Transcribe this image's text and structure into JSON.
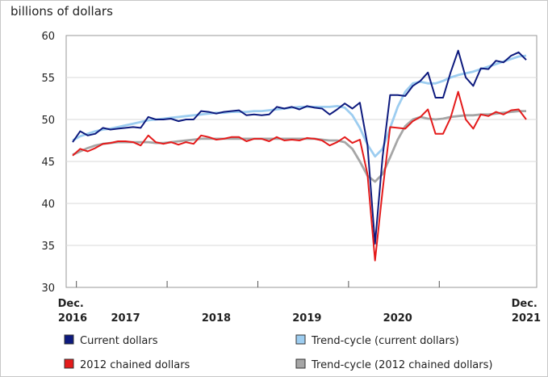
{
  "chart_data": {
    "type": "line",
    "y_label": "billions of dollars",
    "categories": [
      "Dec. 2016",
      null,
      null,
      null,
      null,
      null,
      null,
      "2017",
      null,
      null,
      null,
      null,
      null,
      null,
      null,
      null,
      null,
      null,
      null,
      "2018",
      null,
      null,
      null,
      null,
      null,
      null,
      null,
      null,
      null,
      null,
      null,
      "2019",
      null,
      null,
      null,
      null,
      null,
      null,
      null,
      null,
      null,
      null,
      null,
      "2020",
      null,
      null,
      null,
      null,
      null,
      null,
      null,
      null,
      null,
      null,
      null,
      null,
      null,
      null,
      null,
      null,
      "Dec. 2021"
    ],
    "ylim": [
      30,
      60
    ],
    "yticks": [
      30,
      35,
      40,
      45,
      50,
      55,
      60
    ],
    "grid": true,
    "series": [
      {
        "name": "Current dollars",
        "color": "#0d1a7e",
        "values": [
          47.3,
          48.6,
          48.1,
          48.3,
          49.0,
          48.8,
          48.9,
          49.0,
          49.1,
          49.0,
          50.3,
          50.0,
          50.0,
          50.1,
          49.8,
          50.0,
          50.0,
          51.0,
          50.9,
          50.7,
          50.9,
          51.0,
          51.1,
          50.5,
          50.6,
          50.5,
          50.6,
          51.5,
          51.3,
          51.5,
          51.2,
          51.6,
          51.4,
          51.3,
          50.6,
          51.2,
          51.9,
          51.3,
          52.0,
          47.0,
          35.2,
          45.5,
          52.9,
          52.9,
          52.8,
          54.0,
          54.6,
          55.6,
          52.6,
          52.6,
          55.6,
          58.2,
          55.0,
          54.0,
          56.1,
          56.0,
          57.0,
          56.8,
          57.6,
          58.0,
          57.1
        ]
      },
      {
        "name": "Trend-cycle (current dollars)",
        "color": "#9dcdf0",
        "values": [
          47.5,
          48.0,
          48.3,
          48.6,
          48.8,
          48.9,
          49.1,
          49.3,
          49.5,
          49.7,
          49.9,
          50.0,
          50.1,
          50.2,
          50.3,
          50.4,
          50.5,
          50.6,
          50.7,
          50.8,
          50.8,
          50.9,
          50.9,
          50.9,
          51.0,
          51.0,
          51.1,
          51.2,
          51.3,
          51.4,
          51.5,
          51.5,
          51.5,
          51.5,
          51.5,
          51.6,
          51.4,
          50.5,
          49.0,
          47.0,
          45.6,
          46.5,
          49.0,
          51.5,
          53.3,
          54.3,
          54.5,
          54.3,
          54.3,
          54.6,
          55.0,
          55.3,
          55.5,
          55.7,
          56.0,
          56.3,
          56.6,
          56.9,
          57.2,
          57.5,
          57.6
        ]
      },
      {
        "name": "2012 chained dollars",
        "color": "#e41b1b",
        "values": [
          45.7,
          46.5,
          46.2,
          46.6,
          47.1,
          47.2,
          47.4,
          47.4,
          47.3,
          46.9,
          48.1,
          47.3,
          47.1,
          47.3,
          47.0,
          47.3,
          47.1,
          48.1,
          47.9,
          47.6,
          47.7,
          47.9,
          47.9,
          47.4,
          47.7,
          47.7,
          47.4,
          47.9,
          47.5,
          47.6,
          47.5,
          47.8,
          47.7,
          47.5,
          46.9,
          47.3,
          47.9,
          47.2,
          47.6,
          43.5,
          33.2,
          41.5,
          49.1,
          49.0,
          48.9,
          49.8,
          50.3,
          51.2,
          48.3,
          48.3,
          50.2,
          53.3,
          50.0,
          48.9,
          50.6,
          50.4,
          50.9,
          50.6,
          51.1,
          51.2,
          50.0
        ]
      },
      {
        "name": "Trend-cycle (2012 chained dollars)",
        "color": "#a6a6a6",
        "values": [
          45.8,
          46.2,
          46.6,
          46.9,
          47.1,
          47.2,
          47.3,
          47.3,
          47.3,
          47.3,
          47.3,
          47.2,
          47.2,
          47.3,
          47.4,
          47.5,
          47.6,
          47.7,
          47.7,
          47.7,
          47.7,
          47.7,
          47.7,
          47.7,
          47.7,
          47.7,
          47.7,
          47.7,
          47.7,
          47.7,
          47.7,
          47.7,
          47.7,
          47.6,
          47.5,
          47.5,
          47.3,
          46.5,
          45.0,
          43.3,
          42.6,
          43.5,
          45.5,
          47.6,
          49.2,
          50.0,
          50.3,
          50.1,
          50.0,
          50.1,
          50.3,
          50.4,
          50.5,
          50.5,
          50.6,
          50.6,
          50.7,
          50.8,
          50.9,
          51.0,
          51.0
        ]
      }
    ]
  }
}
